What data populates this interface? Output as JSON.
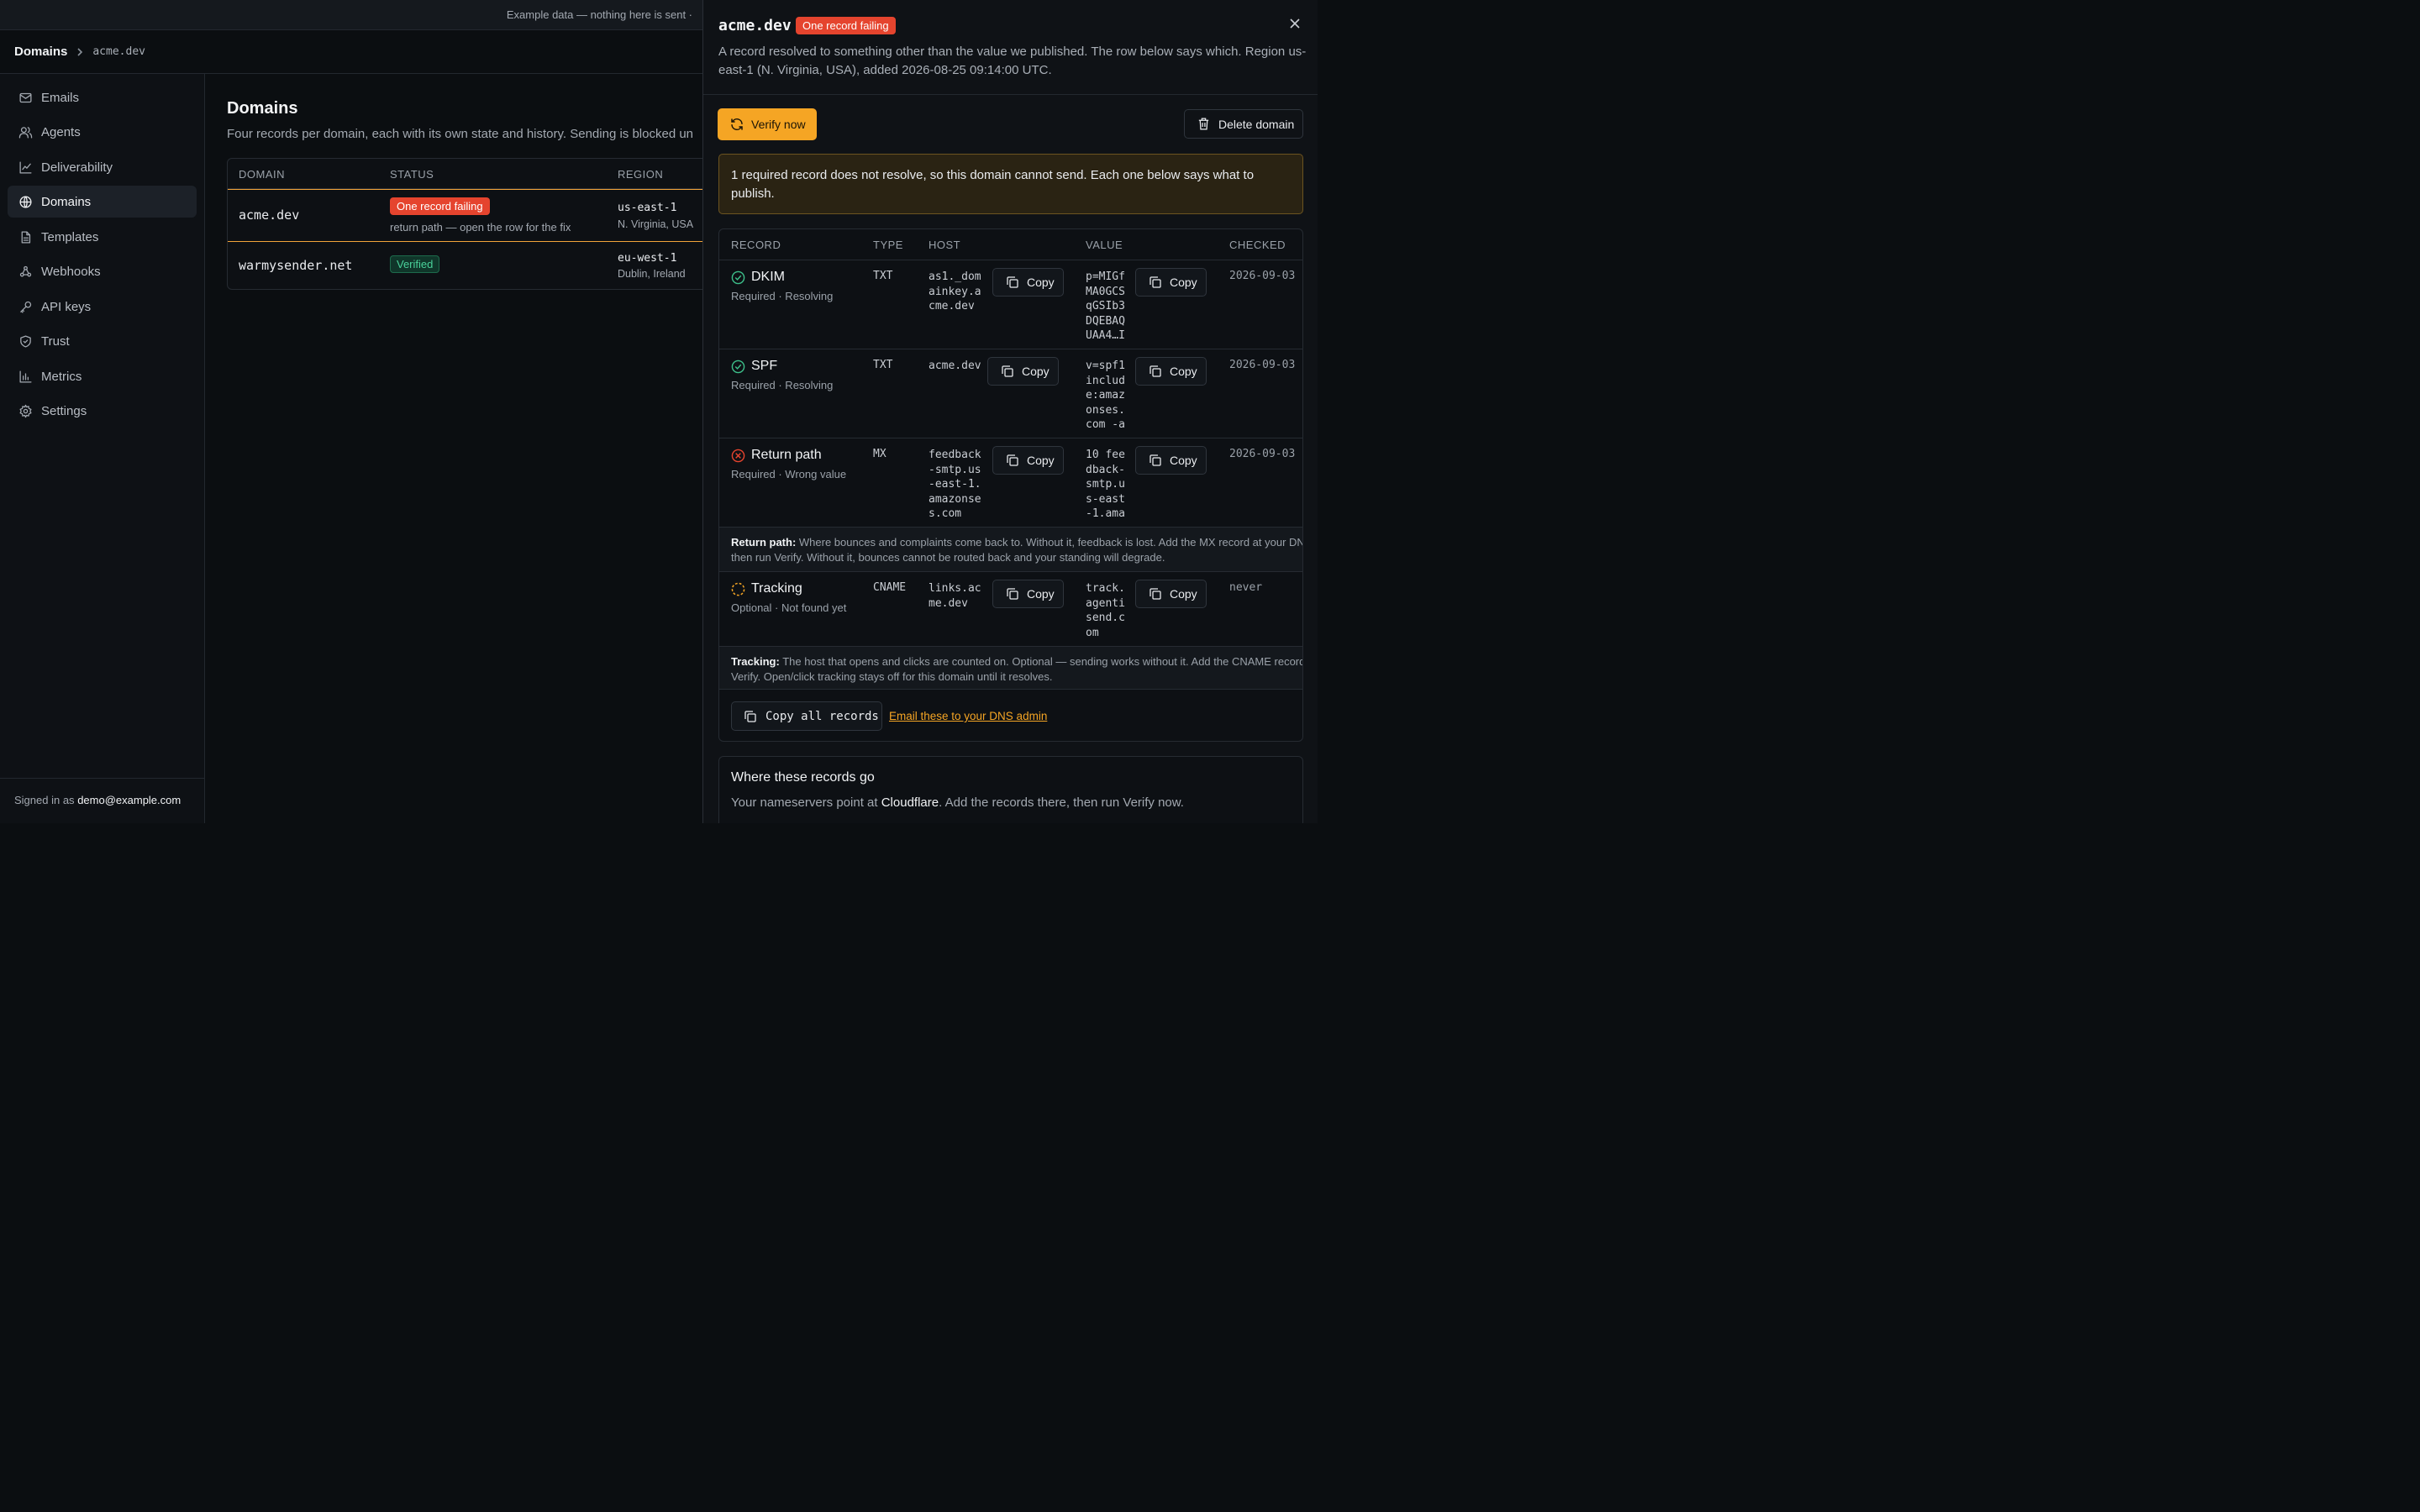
{
  "banner": "Example data — nothing here is sent · ",
  "breadcrumb": {
    "root": "Domains",
    "current": "acme.dev"
  },
  "sidebar": {
    "items": [
      {
        "label": "Emails",
        "icon": "mail-icon"
      },
      {
        "label": "Agents",
        "icon": "users-icon"
      },
      {
        "label": "Deliverability",
        "icon": "chart-line-icon"
      },
      {
        "label": "Domains",
        "icon": "globe-icon",
        "active": true
      },
      {
        "label": "Templates",
        "icon": "file-icon"
      },
      {
        "label": "Webhooks",
        "icon": "webhook-icon"
      },
      {
        "label": "API keys",
        "icon": "key-icon"
      },
      {
        "label": "Trust",
        "icon": "shield-icon"
      },
      {
        "label": "Metrics",
        "icon": "bar-chart-icon"
      },
      {
        "label": "Settings",
        "icon": "gear-icon"
      }
    ],
    "signed_in_prefix": "Signed in as",
    "signed_in_email": "demo@example.com"
  },
  "main": {
    "title": "Domains",
    "subtitle": "Four records per domain, each with its own state and history. Sending is blocked un",
    "columns": [
      "DOMAIN",
      "STATUS",
      "REGION"
    ],
    "rows": [
      {
        "domain": "acme.dev",
        "status": "One record failing",
        "status_detail": "return path — open the row for the fix",
        "region_code": "us-east-1",
        "region_name": "N. Virginia, USA"
      },
      {
        "domain": "warmysender.net",
        "status": "Verified",
        "region_code": "eu-west-1",
        "region_name": "Dublin, Ireland"
      }
    ]
  },
  "panel": {
    "title": "acme.dev",
    "badge": "One record failing",
    "description": "A record resolved to something other than the value we published. The row below says which. Region us-east-1 (N. Virginia, USA), added 2026-08-25 09:14:00 UTC.",
    "verify_label": "Verify now",
    "delete_label": "Delete domain",
    "warning": "1 required record does not resolve, so this domain cannot send. Each one below says what to publish.",
    "columns": [
      "RECORD",
      "TYPE",
      "HOST",
      "VALUE",
      "CHECKED"
    ],
    "copy_label": "Copy",
    "records": [
      {
        "name": "DKIM",
        "state": "Required · Resolving",
        "type": "TXT",
        "host": "as1._domainkey.acme.dev",
        "value": "p=MIGfMA0GCSqGSIb3DQEBAQUAA4…I",
        "checked": "2026-09-03"
      },
      {
        "name": "SPF",
        "state": "Required · Resolving",
        "type": "TXT",
        "host": "acme.dev",
        "value": "v=spf1 include:amazonses.com -a",
        "checked": "2026-09-03"
      },
      {
        "name": "Return path",
        "state": "Required · Wrong value",
        "type": "MX",
        "host": "feedback-smtp.us-east-1.amazonses.com",
        "value": "10 feedback-smtp.us-east-1.ama",
        "checked": "2026-09-03"
      },
      {
        "name": "Tracking",
        "state": "Optional · Not found yet",
        "type": "CNAME",
        "host": "links.acme.dev",
        "value": "track.agentisend.com",
        "checked": "never"
      }
    ],
    "notes": {
      "return_path_label": "Return path:",
      "return_path_text": "Where bounces and complaints come back to. Without it, feedback is lost. Add the MX record at your DN",
      "return_path_text2": "then run Verify. Without it, bounces cannot be routed back and your standing will degrade.",
      "tracking_label": "Tracking:",
      "tracking_text": "The host that opens and clicks are counted on. Optional — sending works without it. Add the CNAME record",
      "tracking_text2": "Verify. Open/click tracking stays off for this domain until it resolves."
    },
    "copy_all_label": "Copy all records",
    "email_link": "Email these to your DNS admin",
    "where_title": "Where these records go",
    "where_prefix": "Your nameservers point at",
    "where_provider": "Cloudflare",
    "where_suffix": ". Add the records there, then run Verify now."
  },
  "colors": {
    "accent": "#f5a524",
    "danger": "#e5442e",
    "success": "#49d19a"
  }
}
